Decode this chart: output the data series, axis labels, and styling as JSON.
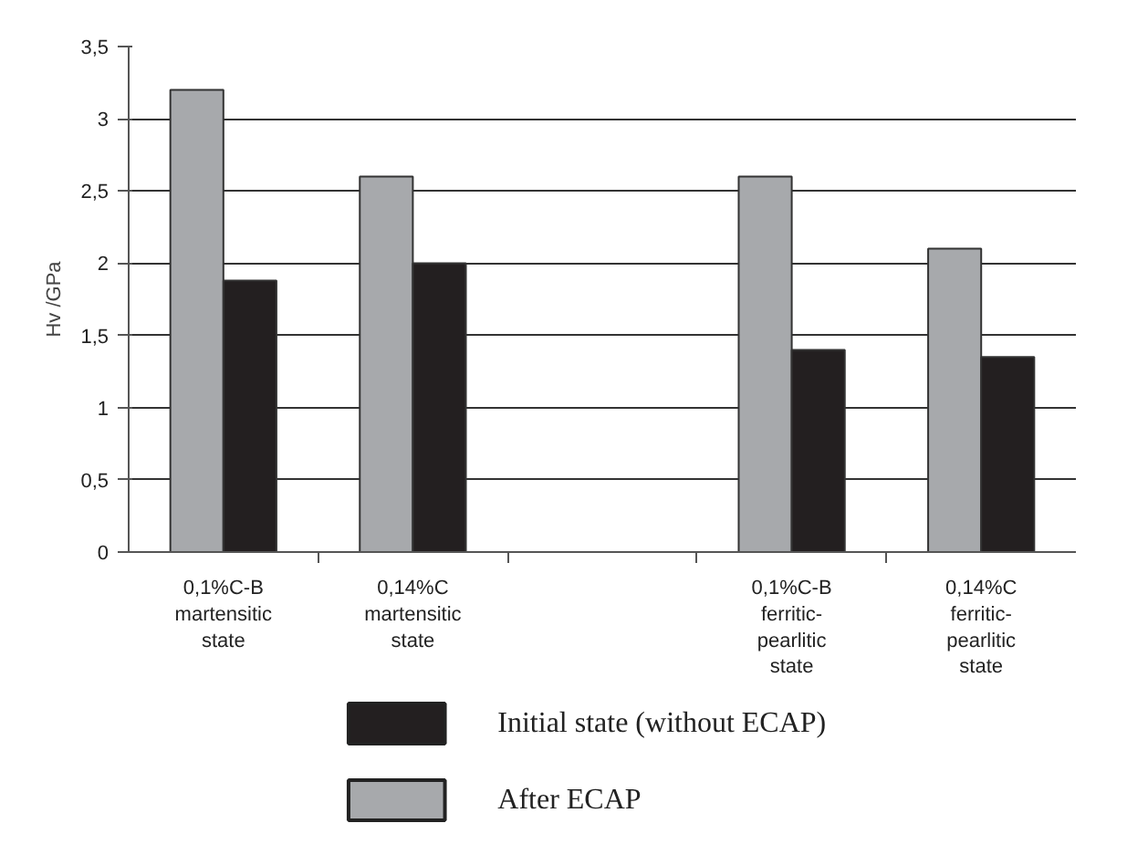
{
  "chart_data": {
    "type": "bar",
    "ylabel": "Hv /GPa",
    "categories": [
      "0,1%C-B\nmartensitic\nstate",
      "0,14%C\nmartensitic\nstate",
      null,
      "0,1%C-B\nferritic-\npearlitic\nstate",
      "0,14%C\nferritic-\npearlitic\nstate"
    ],
    "series": [
      {
        "name": "After ECAP",
        "color": "#a7a9ac",
        "values": [
          3.2,
          2.6,
          null,
          2.6,
          2.1
        ]
      },
      {
        "name": "Initial state (without ECAP)",
        "color": "#231f20",
        "values": [
          1.88,
          2.0,
          null,
          1.4,
          1.35
        ]
      }
    ],
    "ylim": [
      0,
      3.5
    ],
    "yticks": [
      0,
      {
        "value": 0.5,
        "label": "0,5"
      },
      1,
      {
        "value": 1.5,
        "label": "1,5"
      },
      2,
      {
        "value": 2.5,
        "label": "2,5"
      },
      3,
      {
        "value": 3.5,
        "label": "3,5"
      }
    ],
    "grid": "y",
    "legend": "bottom"
  }
}
